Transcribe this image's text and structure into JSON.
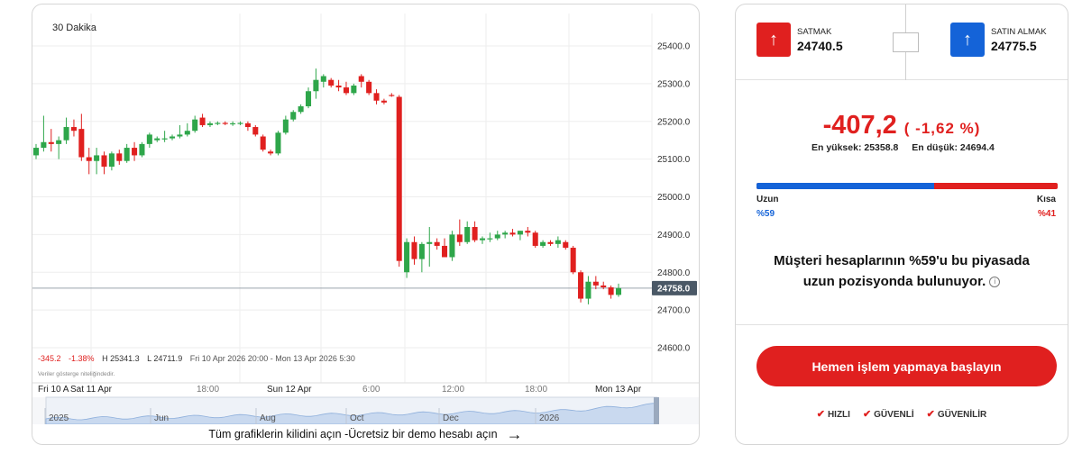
{
  "chart": {
    "timeframe": "30 Dakika",
    "price_axis": [
      "25400.0",
      "25300.0",
      "25200.0",
      "25100.0",
      "25000.0",
      "24900.0",
      "24800.0",
      "24700.0",
      "24600.0"
    ],
    "current_price": "24758.0",
    "time_axis": [
      "Fri 10 A",
      "Sat 11 Apr",
      "18:00",
      "Sun 12 Apr",
      "6:00",
      "12:00",
      "18:00",
      "Mon 13 Apr"
    ],
    "navigator_axis": [
      "2025",
      "Jun",
      "Aug",
      "Oct",
      "Dec",
      "2026"
    ],
    "stats": {
      "change": "-345.2",
      "change_pct": "-1.38%",
      "high": "H 25341.3",
      "low": "L 24711.9",
      "range": "Fri 10 Apr 2026 20:00 - Mon 13 Apr 2026 5:30"
    },
    "disclaimer": "Veriler gösterge niteliğindedir.",
    "unlock_text": "Tüm grafiklerin kilidini açın -Ücretsiz bir demo hesabı açın",
    "colors": {
      "up": "#2ea64a",
      "down": "#e0201f"
    }
  },
  "chart_data": {
    "type": "candlestick",
    "title": "",
    "timeframe": "30 Dakika",
    "ylim": [
      24560,
      25460
    ],
    "current_price": 24758.0,
    "candles": [
      {
        "o": 25110,
        "h": 25140,
        "l": 25100,
        "c": 25130
      },
      {
        "o": 25130,
        "h": 25215,
        "l": 25120,
        "c": 25145
      },
      {
        "o": 25145,
        "h": 25180,
        "l": 25120,
        "c": 25140
      },
      {
        "o": 25140,
        "h": 25160,
        "l": 25100,
        "c": 25150
      },
      {
        "o": 25150,
        "h": 25210,
        "l": 25140,
        "c": 25185
      },
      {
        "o": 25185,
        "h": 25205,
        "l": 25160,
        "c": 25175
      },
      {
        "o": 25180,
        "h": 25220,
        "l": 25095,
        "c": 25105
      },
      {
        "o": 25105,
        "h": 25130,
        "l": 25060,
        "c": 25095
      },
      {
        "o": 25095,
        "h": 25130,
        "l": 25060,
        "c": 25110
      },
      {
        "o": 25110,
        "h": 25120,
        "l": 25060,
        "c": 25080
      },
      {
        "o": 25080,
        "h": 25120,
        "l": 25070,
        "c": 25115
      },
      {
        "o": 25115,
        "h": 25125,
        "l": 25085,
        "c": 25095
      },
      {
        "o": 25095,
        "h": 25140,
        "l": 25090,
        "c": 25130
      },
      {
        "o": 25130,
        "h": 25145,
        "l": 25095,
        "c": 25110
      },
      {
        "o": 25110,
        "h": 25145,
        "l": 25105,
        "c": 25140
      },
      {
        "o": 25140,
        "h": 25170,
        "l": 25130,
        "c": 25165
      },
      {
        "o": 25150,
        "h": 25160,
        "l": 25145,
        "c": 25155
      },
      {
        "o": 25155,
        "h": 25175,
        "l": 25145,
        "c": 25155
      },
      {
        "o": 25155,
        "h": 25165,
        "l": 25150,
        "c": 25160
      },
      {
        "o": 25160,
        "h": 25190,
        "l": 25155,
        "c": 25165
      },
      {
        "o": 25165,
        "h": 25195,
        "l": 25160,
        "c": 25175
      },
      {
        "o": 25175,
        "h": 25215,
        "l": 25170,
        "c": 25205
      },
      {
        "o": 25210,
        "h": 25220,
        "l": 25185,
        "c": 25190
      },
      {
        "o": 25190,
        "h": 25200,
        "l": 25185,
        "c": 25195
      },
      {
        "o": 25195,
        "h": 25200,
        "l": 25190,
        "c": 25196
      },
      {
        "o": 25196,
        "h": 25200,
        "l": 25190,
        "c": 25194
      },
      {
        "o": 25194,
        "h": 25200,
        "l": 25188,
        "c": 25195
      },
      {
        "o": 25195,
        "h": 25200,
        "l": 25190,
        "c": 25196
      },
      {
        "o": 25195,
        "h": 25200,
        "l": 25175,
        "c": 25185
      },
      {
        "o": 25185,
        "h": 25190,
        "l": 25160,
        "c": 25165
      },
      {
        "o": 25160,
        "h": 25165,
        "l": 25120,
        "c": 25125
      },
      {
        "o": 25120,
        "h": 25125,
        "l": 25110,
        "c": 25115
      },
      {
        "o": 25115,
        "h": 25175,
        "l": 25110,
        "c": 25170
      },
      {
        "o": 25170,
        "h": 25215,
        "l": 25165,
        "c": 25205
      },
      {
        "o": 25205,
        "h": 25230,
        "l": 25200,
        "c": 25225
      },
      {
        "o": 25225,
        "h": 25245,
        "l": 25220,
        "c": 25240
      },
      {
        "o": 25240,
        "h": 25290,
        "l": 25235,
        "c": 25280
      },
      {
        "o": 25280,
        "h": 25340,
        "l": 25260,
        "c": 25310
      },
      {
        "o": 25305,
        "h": 25325,
        "l": 25290,
        "c": 25320
      },
      {
        "o": 25310,
        "h": 25315,
        "l": 25290,
        "c": 25295
      },
      {
        "o": 25295,
        "h": 25310,
        "l": 25280,
        "c": 25290
      },
      {
        "o": 25290,
        "h": 25305,
        "l": 25270,
        "c": 25275
      },
      {
        "o": 25275,
        "h": 25300,
        "l": 25270,
        "c": 25295
      },
      {
        "o": 25320,
        "h": 25325,
        "l": 25290,
        "c": 25305
      },
      {
        "o": 25305,
        "h": 25310,
        "l": 25270,
        "c": 25275
      },
      {
        "o": 25275,
        "h": 25285,
        "l": 25245,
        "c": 25255
      },
      {
        "o": 25255,
        "h": 25260,
        "l": 25245,
        "c": 25250
      },
      {
        "o": 25270,
        "h": 25275,
        "l": 25265,
        "c": 25268
      },
      {
        "o": 25265,
        "h": 25270,
        "l": 24815,
        "c": 24830
      },
      {
        "o": 24800,
        "h": 24890,
        "l": 24785,
        "c": 24880
      },
      {
        "o": 24880,
        "h": 24895,
        "l": 24820,
        "c": 24835
      },
      {
        "o": 24835,
        "h": 24880,
        "l": 24800,
        "c": 24875
      },
      {
        "o": 24875,
        "h": 24920,
        "l": 24815,
        "c": 24880
      },
      {
        "o": 24880,
        "h": 24890,
        "l": 24860,
        "c": 24870
      },
      {
        "o": 24870,
        "h": 24890,
        "l": 24840,
        "c": 24840
      },
      {
        "o": 24840,
        "h": 24910,
        "l": 24830,
        "c": 24900
      },
      {
        "o": 24900,
        "h": 24940,
        "l": 24870,
        "c": 24880
      },
      {
        "o": 24880,
        "h": 24935,
        "l": 24875,
        "c": 24920
      },
      {
        "o": 24920,
        "h": 24935,
        "l": 24880,
        "c": 24885
      },
      {
        "o": 24885,
        "h": 24895,
        "l": 24875,
        "c": 24890
      },
      {
        "o": 24890,
        "h": 24905,
        "l": 24880,
        "c": 24890
      },
      {
        "o": 24890,
        "h": 24910,
        "l": 24885,
        "c": 24900
      },
      {
        "o": 24900,
        "h": 24910,
        "l": 24890,
        "c": 24905
      },
      {
        "o": 24905,
        "h": 24915,
        "l": 24895,
        "c": 24900
      },
      {
        "o": 24900,
        "h": 24910,
        "l": 24885,
        "c": 24910
      },
      {
        "o": 24910,
        "h": 24920,
        "l": 24895,
        "c": 24905
      },
      {
        "o": 24905,
        "h": 24910,
        "l": 24865,
        "c": 24870
      },
      {
        "o": 24870,
        "h": 24885,
        "l": 24865,
        "c": 24880
      },
      {
        "o": 24880,
        "h": 24885,
        "l": 24870,
        "c": 24875
      },
      {
        "o": 24875,
        "h": 24895,
        "l": 24865,
        "c": 24885
      },
      {
        "o": 24880,
        "h": 24885,
        "l": 24860,
        "c": 24865
      },
      {
        "o": 24865,
        "h": 24870,
        "l": 24795,
        "c": 24800
      },
      {
        "o": 24800,
        "h": 24805,
        "l": 24720,
        "c": 24730
      },
      {
        "o": 24730,
        "h": 24790,
        "l": 24715,
        "c": 24775
      },
      {
        "o": 24775,
        "h": 24790,
        "l": 24755,
        "c": 24765
      },
      {
        "o": 24765,
        "h": 24775,
        "l": 24755,
        "c": 24760
      },
      {
        "o": 24760,
        "h": 24765,
        "l": 24730,
        "c": 24740
      },
      {
        "o": 24740,
        "h": 24770,
        "l": 24735,
        "c": 24758
      }
    ]
  },
  "trade": {
    "sell_label": "SATMAK",
    "sell_price": "24740.5",
    "buy_label": "SATIN ALMAK",
    "buy_price": "24775.5",
    "change_value": "-407,2",
    "change_pct": "( -1,62 %)",
    "high": "En yüksek: 25358.8",
    "low": "En düşük: 24694.4",
    "long_label": "Uzun",
    "short_label": "Kısa",
    "long_pct_text": "%59",
    "short_pct_text": "%41",
    "long_fraction": 0.59,
    "sentiment_line1": "Müşteri hesaplarının %59'u bu piyasada",
    "sentiment_line2": "uzun pozisyonda bulunuyor.",
    "cta": "Hemen işlem yapmaya başlayın",
    "badges": [
      "HIZLI",
      "GÜVENLİ",
      "GÜVENİLİR"
    ],
    "colors": {
      "sell": "#e0201f",
      "buy": "#1463d8"
    }
  }
}
